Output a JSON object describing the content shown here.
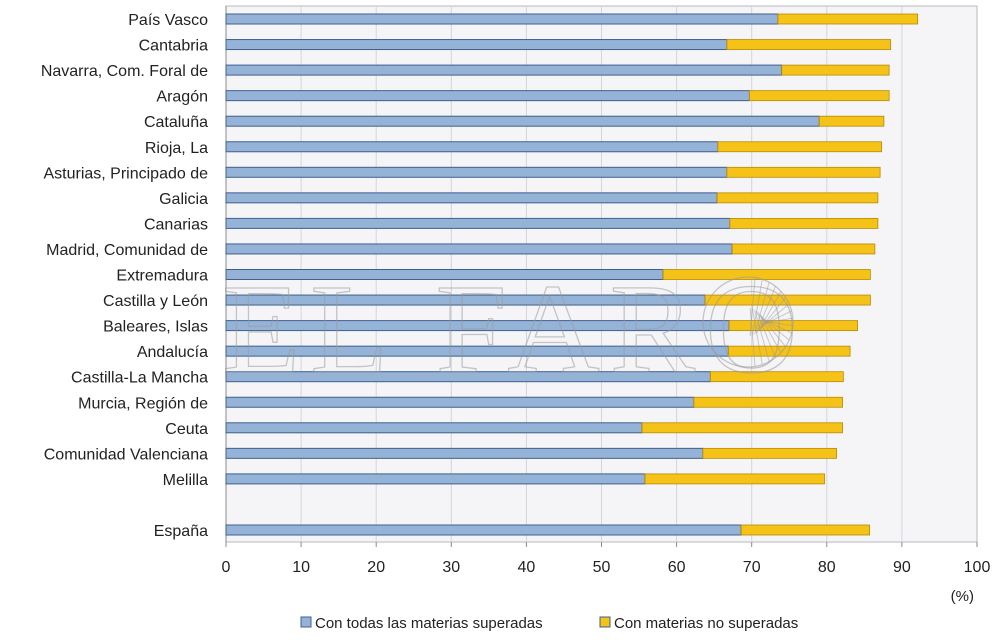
{
  "chart_data": {
    "type": "bar",
    "orientation": "horizontal",
    "stacked": true,
    "categories": [
      "País Vasco",
      "Cantabria",
      "Navarra, Com. Foral de",
      "Aragón",
      "Cataluña",
      "Rioja, La",
      "Asturias, Principado de",
      "Galicia",
      "Canarias",
      "Madrid, Comunidad de",
      "Extremadura",
      "Castilla y León",
      "Baleares, Islas",
      "Andalucía",
      "Castilla-La Mancha",
      "Murcia, Región de",
      "Ceuta",
      "Comunidad Valenciana",
      "Melilla",
      "",
      "España"
    ],
    "series": [
      {
        "name": "Con todas las materias superadas",
        "color": "#95b3d7",
        "values": [
          73.5,
          66.7,
          74.0,
          69.7,
          79.0,
          65.5,
          66.7,
          65.4,
          67.1,
          67.4,
          58.2,
          63.8,
          67.0,
          66.9,
          64.5,
          62.3,
          55.4,
          63.5,
          55.8,
          null,
          68.6
        ]
      },
      {
        "name": "Con materias no superadas",
        "color": "#f5c218",
        "values": [
          18.6,
          21.8,
          14.3,
          18.6,
          8.6,
          21.8,
          20.4,
          21.4,
          19.7,
          19.0,
          27.6,
          22.0,
          17.1,
          16.2,
          17.7,
          19.8,
          26.7,
          17.8,
          23.9,
          null,
          17.1
        ]
      }
    ],
    "xlim": [
      0,
      100
    ],
    "xticks": [
      "0",
      "10",
      "20",
      "30",
      "40",
      "50",
      "60",
      "70",
      "80",
      "90",
      "100"
    ],
    "unit_label": "(%)",
    "grid": "vertical",
    "legend_position": "bottom",
    "bar_edge_color": "#3f5f8f",
    "watermark": "EL FARO"
  }
}
